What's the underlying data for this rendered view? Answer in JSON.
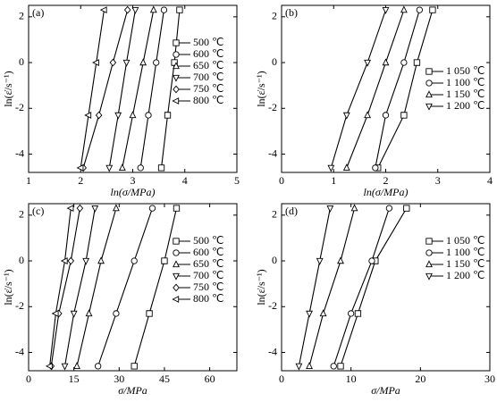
{
  "chart_data": [
    {
      "type": "scatter",
      "label": "(a)",
      "xlabel": "ln(σ/MPa)",
      "ylabel": "ln(ε̇/s⁻¹)",
      "xlim": [
        1,
        5
      ],
      "xticks": [
        1,
        2,
        3,
        4,
        5
      ],
      "ylim": [
        -4.8,
        2.5
      ],
      "yticks": [
        -4,
        -2,
        0,
        2
      ],
      "legend": "upper right",
      "series": [
        {
          "name": "500 ℃",
          "color": "#000000",
          "marker": "square",
          "x": [
            3.55,
            3.67,
            3.8,
            3.9
          ],
          "values": [
            -4.6,
            -2.3,
            0,
            2.3
          ]
        },
        {
          "name": "600 ℃",
          "color": "#000000",
          "marker": "circle",
          "x": [
            3.15,
            3.3,
            3.45,
            3.6
          ],
          "values": [
            -4.6,
            -2.3,
            0,
            2.3
          ]
        },
        {
          "name": "650 ℃",
          "color": "#000000",
          "marker": "triangle-up",
          "x": [
            2.8,
            3.0,
            3.2,
            3.4
          ],
          "values": [
            -4.6,
            -2.3,
            0,
            2.3
          ]
        },
        {
          "name": "700 ℃",
          "color": "#000000",
          "marker": "triangle-down",
          "x": [
            2.55,
            2.72,
            2.88,
            3.05
          ],
          "values": [
            -4.6,
            -2.3,
            0,
            2.3
          ]
        },
        {
          "name": "750 ℃",
          "color": "#000000",
          "marker": "diamond",
          "x": [
            2.05,
            2.35,
            2.62,
            2.9
          ],
          "values": [
            -4.6,
            -2.3,
            0,
            2.3
          ]
        },
        {
          "name": "800 ℃",
          "color": "#000000",
          "marker": "triangle-left",
          "x": [
            2.0,
            2.15,
            2.3,
            2.45
          ],
          "values": [
            -4.6,
            -2.3,
            0,
            2.3
          ]
        }
      ]
    },
    {
      "type": "scatter",
      "label": "(b)",
      "xlabel": "ln(σ/MPa)",
      "ylabel": "ln(ε̇/s⁻¹)",
      "xlim": [
        0,
        4
      ],
      "xticks": [
        0,
        1,
        2,
        3,
        4
      ],
      "ylim": [
        -4.8,
        2.5
      ],
      "yticks": [
        -4,
        -2,
        0,
        2
      ],
      "legend": "center right",
      "series": [
        {
          "name": "1 050 ℃",
          "color": "#000000",
          "marker": "square",
          "x": [
            1.85,
            2.35,
            2.6,
            2.9
          ],
          "values": [
            -4.6,
            -2.3,
            0,
            2.3
          ]
        },
        {
          "name": "1 100 ℃",
          "color": "#000000",
          "marker": "circle",
          "x": [
            1.8,
            2.0,
            2.35,
            2.65
          ],
          "values": [
            -4.6,
            -2.3,
            0,
            2.3
          ]
        },
        {
          "name": "1 150 ℃",
          "color": "#000000",
          "marker": "triangle-up",
          "x": [
            1.25,
            1.65,
            2.0,
            2.35
          ],
          "values": [
            -4.6,
            -2.3,
            0,
            2.3
          ]
        },
        {
          "name": "1 200 ℃",
          "color": "#000000",
          "marker": "triangle-down",
          "x": [
            0.95,
            1.25,
            1.65,
            2.0
          ],
          "values": [
            -4.6,
            -2.3,
            0,
            2.3
          ]
        }
      ]
    },
    {
      "type": "scatter",
      "label": "(c)",
      "xlabel": "σ/MPa",
      "ylabel": "ln(ε̇/s⁻¹)",
      "xlim": [
        0,
        69
      ],
      "xticks": [
        0,
        15,
        30,
        45,
        60
      ],
      "ylim": [
        -4.8,
        2.5
      ],
      "yticks": [
        -4,
        -2,
        0,
        2
      ],
      "legend": "upper right",
      "series": [
        {
          "name": "500 ℃",
          "color": "#000000",
          "marker": "square",
          "x": [
            35,
            40,
            45,
            49
          ],
          "values": [
            -4.6,
            -2.3,
            0,
            2.3
          ]
        },
        {
          "name": "600 ℃",
          "color": "#000000",
          "marker": "circle",
          "x": [
            23,
            29,
            35,
            41
          ],
          "values": [
            -4.6,
            -2.3,
            0,
            2.3
          ]
        },
        {
          "name": "650 ℃",
          "color": "#000000",
          "marker": "triangle-up",
          "x": [
            16,
            20,
            24,
            29
          ],
          "values": [
            -4.6,
            -2.3,
            0,
            2.3
          ]
        },
        {
          "name": "700 ℃",
          "color": "#000000",
          "marker": "triangle-down",
          "x": [
            12,
            15,
            19,
            22
          ],
          "values": [
            -4.6,
            -2.3,
            0,
            2.3
          ]
        },
        {
          "name": "750 ℃",
          "color": "#000000",
          "marker": "diamond",
          "x": [
            7.5,
            10,
            14,
            17
          ],
          "values": [
            -4.6,
            -2.3,
            0,
            2.3
          ]
        },
        {
          "name": "800 ℃",
          "color": "#000000",
          "marker": "triangle-left",
          "x": [
            7,
            9,
            12,
            14
          ],
          "values": [
            -4.6,
            -2.3,
            0,
            2.3
          ]
        }
      ]
    },
    {
      "type": "scatter",
      "label": "(d)",
      "xlabel": "σ/MPa",
      "ylabel": "ln(ε̇/s⁻¹)",
      "xlim": [
        0,
        30
      ],
      "xticks": [
        0,
        10,
        20,
        30
      ],
      "ylim": [
        -4.8,
        2.5
      ],
      "yticks": [
        -4,
        -2,
        0,
        2
      ],
      "legend": "upper right",
      "series": [
        {
          "name": "1 050 ℃",
          "color": "#000000",
          "marker": "square",
          "x": [
            8.5,
            11,
            13.5,
            18
          ],
          "values": [
            -4.6,
            -2.3,
            0,
            2.3
          ]
        },
        {
          "name": "1 100 ℃",
          "color": "#000000",
          "marker": "circle",
          "x": [
            7.5,
            10,
            13,
            15.5
          ],
          "values": [
            -4.6,
            -2.3,
            0,
            2.3
          ]
        },
        {
          "name": "1 150 ℃",
          "color": "#000000",
          "marker": "triangle-up",
          "x": [
            4,
            6,
            8.5,
            10.5
          ],
          "values": [
            -4.6,
            -2.3,
            0,
            2.3
          ]
        },
        {
          "name": "1 200 ℃",
          "color": "#000000",
          "marker": "triangle-down",
          "x": [
            2.5,
            4,
            5.5,
            7
          ],
          "values": [
            -4.6,
            -2.3,
            0,
            2.3
          ]
        }
      ]
    }
  ]
}
